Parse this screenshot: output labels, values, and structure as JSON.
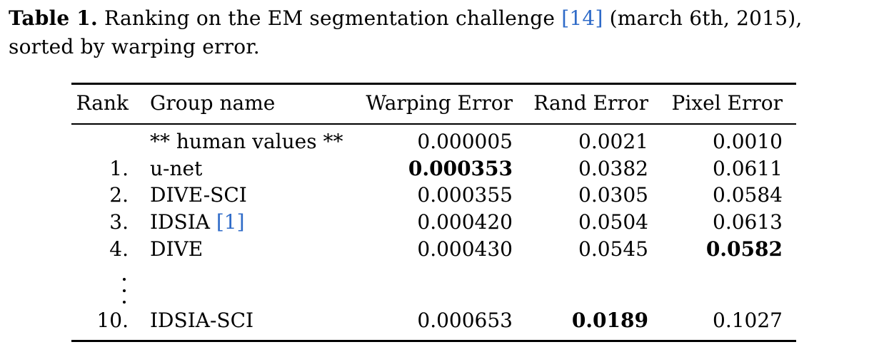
{
  "caption": {
    "label": "Table 1.",
    "text_before_cite": " Ranking on the EM segmentation challenge ",
    "cite": "[14]",
    "text_after_cite": " (march 6th, 2015), sorted by warping error."
  },
  "table": {
    "headers": {
      "rank": "Rank",
      "group": "Group name",
      "warping": "Warping Error",
      "rand": "Rand Error",
      "pixel": "Pixel Error"
    },
    "rows": [
      {
        "rank": "",
        "group": "** human values **",
        "group_cite": "",
        "warping": "0.000005",
        "rand": "0.0021",
        "pixel": "0.0010"
      },
      {
        "rank": "1.",
        "group": "u-net",
        "group_cite": "",
        "warping": "0.000353",
        "rand": "0.0382",
        "pixel": "0.0611"
      },
      {
        "rank": "2.",
        "group": "DIVE-SCI",
        "group_cite": "",
        "warping": "0.000355",
        "rand": "0.0305",
        "pixel": "0.0584"
      },
      {
        "rank": "3.",
        "group": "IDSIA ",
        "group_cite": "[1]",
        "warping": "0.000420",
        "rand": "0.0504",
        "pixel": "0.0613"
      },
      {
        "rank": "4.",
        "group": "DIVE",
        "group_cite": "",
        "warping": "0.000430",
        "rand": "0.0545",
        "pixel": "0.0582"
      },
      {
        "rank": "10.",
        "group": "IDSIA-SCI",
        "group_cite": "",
        "warping": "0.000653",
        "rand": "0.0189",
        "pixel": "0.1027"
      }
    ]
  },
  "colors": {
    "citation": "#2f6bc8"
  }
}
